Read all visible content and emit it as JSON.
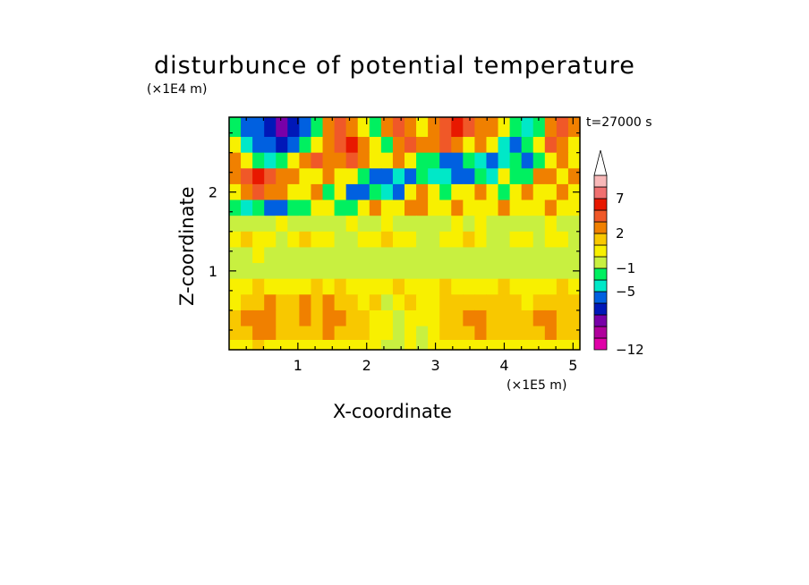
{
  "chart_data": {
    "type": "heatmap",
    "title": "disturbunce of potential temperature",
    "time_label": "t=27000 s",
    "xlabel": "X-coordinate",
    "ylabel": "Z-coordinate",
    "x_unit": "(×1E5 m)",
    "y_unit": "(×1E4 m)",
    "xlim": [
      0,
      5.1
    ],
    "ylim": [
      0,
      2.95
    ],
    "x_ticks": [
      "1",
      "2",
      "3",
      "4",
      "5"
    ],
    "y_ticks": [
      "1",
      "2"
    ],
    "colorbar": {
      "levels": [
        -12,
        -10,
        -8,
        -6,
        -5,
        -3,
        -1,
        0,
        1,
        2,
        3,
        5,
        7,
        9,
        11
      ],
      "tick_labels": [
        "7",
        "2",
        "−1",
        "−5",
        "−12"
      ],
      "colors": [
        "#e000a8",
        "#b0009c",
        "#7800a8",
        "#0018b8",
        "#0060e0",
        "#00e8c8",
        "#00f060",
        "#c8f040",
        "#f8f000",
        "#f8c800",
        "#f08000",
        "#f05828",
        "#e81800",
        "#f07070",
        "#f8b8b8"
      ],
      "extend": "max"
    },
    "rows": [
      {
        "z": 2.8,
        "values": [
          -1,
          -5,
          -5,
          -6,
          -8,
          -6,
          -5,
          -1,
          3,
          5,
          3,
          1,
          -1,
          3,
          5,
          3,
          1,
          3,
          5,
          7,
          5,
          3,
          3,
          1,
          -1,
          -3,
          -1,
          3,
          5,
          3
        ]
      },
      {
        "z": 2.6,
        "values": [
          1,
          -3,
          -5,
          -5,
          -6,
          -5,
          -1,
          1,
          3,
          5,
          7,
          3,
          1,
          -1,
          3,
          5,
          3,
          3,
          5,
          3,
          1,
          3,
          1,
          -3,
          -5,
          -1,
          1,
          5,
          3,
          1
        ]
      },
      {
        "z": 2.4,
        "values": [
          3,
          1,
          -1,
          -3,
          -1,
          1,
          3,
          5,
          3,
          3,
          5,
          3,
          1,
          1,
          3,
          1,
          -1,
          -1,
          -5,
          -5,
          -1,
          -3,
          -5,
          -3,
          -1,
          -5,
          -1,
          1,
          3,
          1
        ]
      },
      {
        "z": 2.2,
        "values": [
          3,
          5,
          7,
          5,
          3,
          3,
          1,
          1,
          3,
          1,
          1,
          -1,
          -5,
          -5,
          -3,
          -5,
          -1,
          -3,
          -3,
          -5,
          -5,
          -1,
          -3,
          1,
          -1,
          -1,
          3,
          3,
          1,
          3
        ]
      },
      {
        "z": 2.0,
        "values": [
          1,
          3,
          5,
          3,
          3,
          1,
          1,
          3,
          -1,
          1,
          -5,
          -5,
          -1,
          -3,
          -5,
          1,
          3,
          1,
          -1,
          1,
          1,
          3,
          1,
          -1,
          1,
          3,
          1,
          1,
          3,
          1
        ]
      },
      {
        "z": 1.8,
        "values": [
          -1,
          -3,
          -1,
          -5,
          -5,
          -1,
          -1,
          1,
          1,
          -1,
          -1,
          1,
          3,
          1,
          1,
          3,
          3,
          1,
          1,
          3,
          1,
          1,
          1,
          3,
          1,
          1,
          1,
          3,
          1,
          1
        ]
      },
      {
        "z": 1.6,
        "values": [
          0,
          0,
          0,
          0,
          1,
          0,
          0,
          0,
          0,
          0,
          1,
          0,
          0,
          1,
          0,
          0,
          0,
          0,
          0,
          1,
          0,
          1,
          0,
          0,
          0,
          0,
          0,
          1,
          0,
          0
        ]
      },
      {
        "z": 1.4,
        "values": [
          1,
          2,
          1,
          1,
          0,
          1,
          2,
          1,
          1,
          0,
          0,
          1,
          1,
          2,
          1,
          1,
          0,
          0,
          1,
          1,
          2,
          1,
          0,
          0,
          1,
          1,
          0,
          1,
          1,
          0
        ]
      },
      {
        "z": 1.2,
        "values": [
          0,
          0,
          1,
          0,
          0,
          0,
          0,
          0,
          0,
          0,
          0,
          0,
          0,
          0,
          0,
          0,
          0,
          0,
          0,
          0,
          0,
          0,
          0,
          0,
          0,
          0,
          0,
          0,
          0,
          0
        ]
      },
      {
        "z": 1.0,
        "values": [
          0,
          0,
          0,
          0,
          0,
          0,
          0,
          0,
          0,
          0,
          0,
          0,
          0,
          0,
          0,
          0,
          0,
          0,
          0,
          0,
          0,
          0,
          0,
          0,
          0,
          0,
          0,
          0,
          0,
          0
        ]
      },
      {
        "z": 0.8,
        "values": [
          1,
          1,
          2,
          1,
          1,
          1,
          1,
          2,
          1,
          2,
          1,
          1,
          1,
          1,
          2,
          1,
          1,
          1,
          2,
          1,
          1,
          1,
          1,
          2,
          1,
          1,
          1,
          1,
          2,
          1
        ]
      },
      {
        "z": 0.6,
        "values": [
          1,
          2,
          2,
          3,
          2,
          2,
          3,
          2,
          3,
          2,
          2,
          1,
          2,
          0,
          1,
          2,
          1,
          1,
          2,
          2,
          2,
          2,
          2,
          2,
          2,
          1,
          2,
          2,
          2,
          2
        ]
      },
      {
        "z": 0.4,
        "values": [
          2,
          3,
          3,
          3,
          2,
          2,
          3,
          2,
          3,
          3,
          2,
          2,
          1,
          1,
          0,
          1,
          1,
          1,
          2,
          2,
          3,
          3,
          2,
          2,
          2,
          2,
          3,
          3,
          2,
          2
        ]
      },
      {
        "z": 0.2,
        "values": [
          2,
          2,
          3,
          3,
          2,
          2,
          2,
          2,
          3,
          2,
          2,
          2,
          1,
          1,
          0,
          1,
          0,
          1,
          2,
          2,
          2,
          3,
          2,
          2,
          2,
          2,
          2,
          3,
          2,
          2
        ]
      },
      {
        "z": 0.05,
        "values": [
          1,
          1,
          2,
          1,
          1,
          1,
          1,
          1,
          1,
          1,
          1,
          1,
          1,
          0,
          0,
          1,
          0,
          1,
          1,
          1,
          1,
          1,
          1,
          1,
          1,
          1,
          1,
          1,
          1,
          1
        ]
      }
    ]
  }
}
